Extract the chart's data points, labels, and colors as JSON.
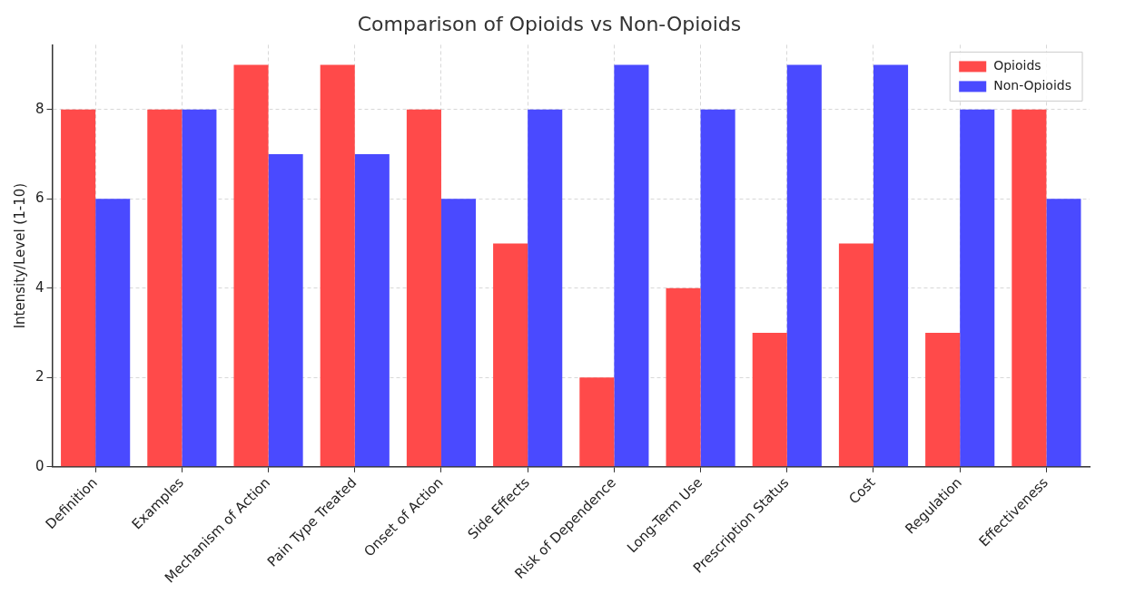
{
  "chart_data": {
    "type": "bar",
    "title": "Comparison of Opioids vs Non-Opioids",
    "ylabel": "Intensity/Level (1-10)",
    "categories": [
      "Definition",
      "Examples",
      "Mechanism of Action",
      "Pain Type Treated",
      "Onset of Action",
      "Side Effects",
      "Risk of Dependence",
      "Long-Term Use",
      "Prescription Status",
      "Cost",
      "Regulation",
      "Effectiveness"
    ],
    "series": [
      {
        "name": "Opioids",
        "color": "#ff4a4a",
        "values": [
          8,
          8,
          9,
          9,
          8,
          5,
          2,
          4,
          3,
          5,
          3,
          8
        ]
      },
      {
        "name": "Non-Opioids",
        "color": "#4a4aff",
        "values": [
          6,
          8,
          7,
          7,
          6,
          8,
          9,
          8,
          9,
          9,
          8,
          6
        ]
      }
    ],
    "ylim": [
      0,
      9.45
    ],
    "yticks": [
      0,
      2,
      4,
      6,
      8
    ],
    "grid": true,
    "legend": "top right"
  }
}
